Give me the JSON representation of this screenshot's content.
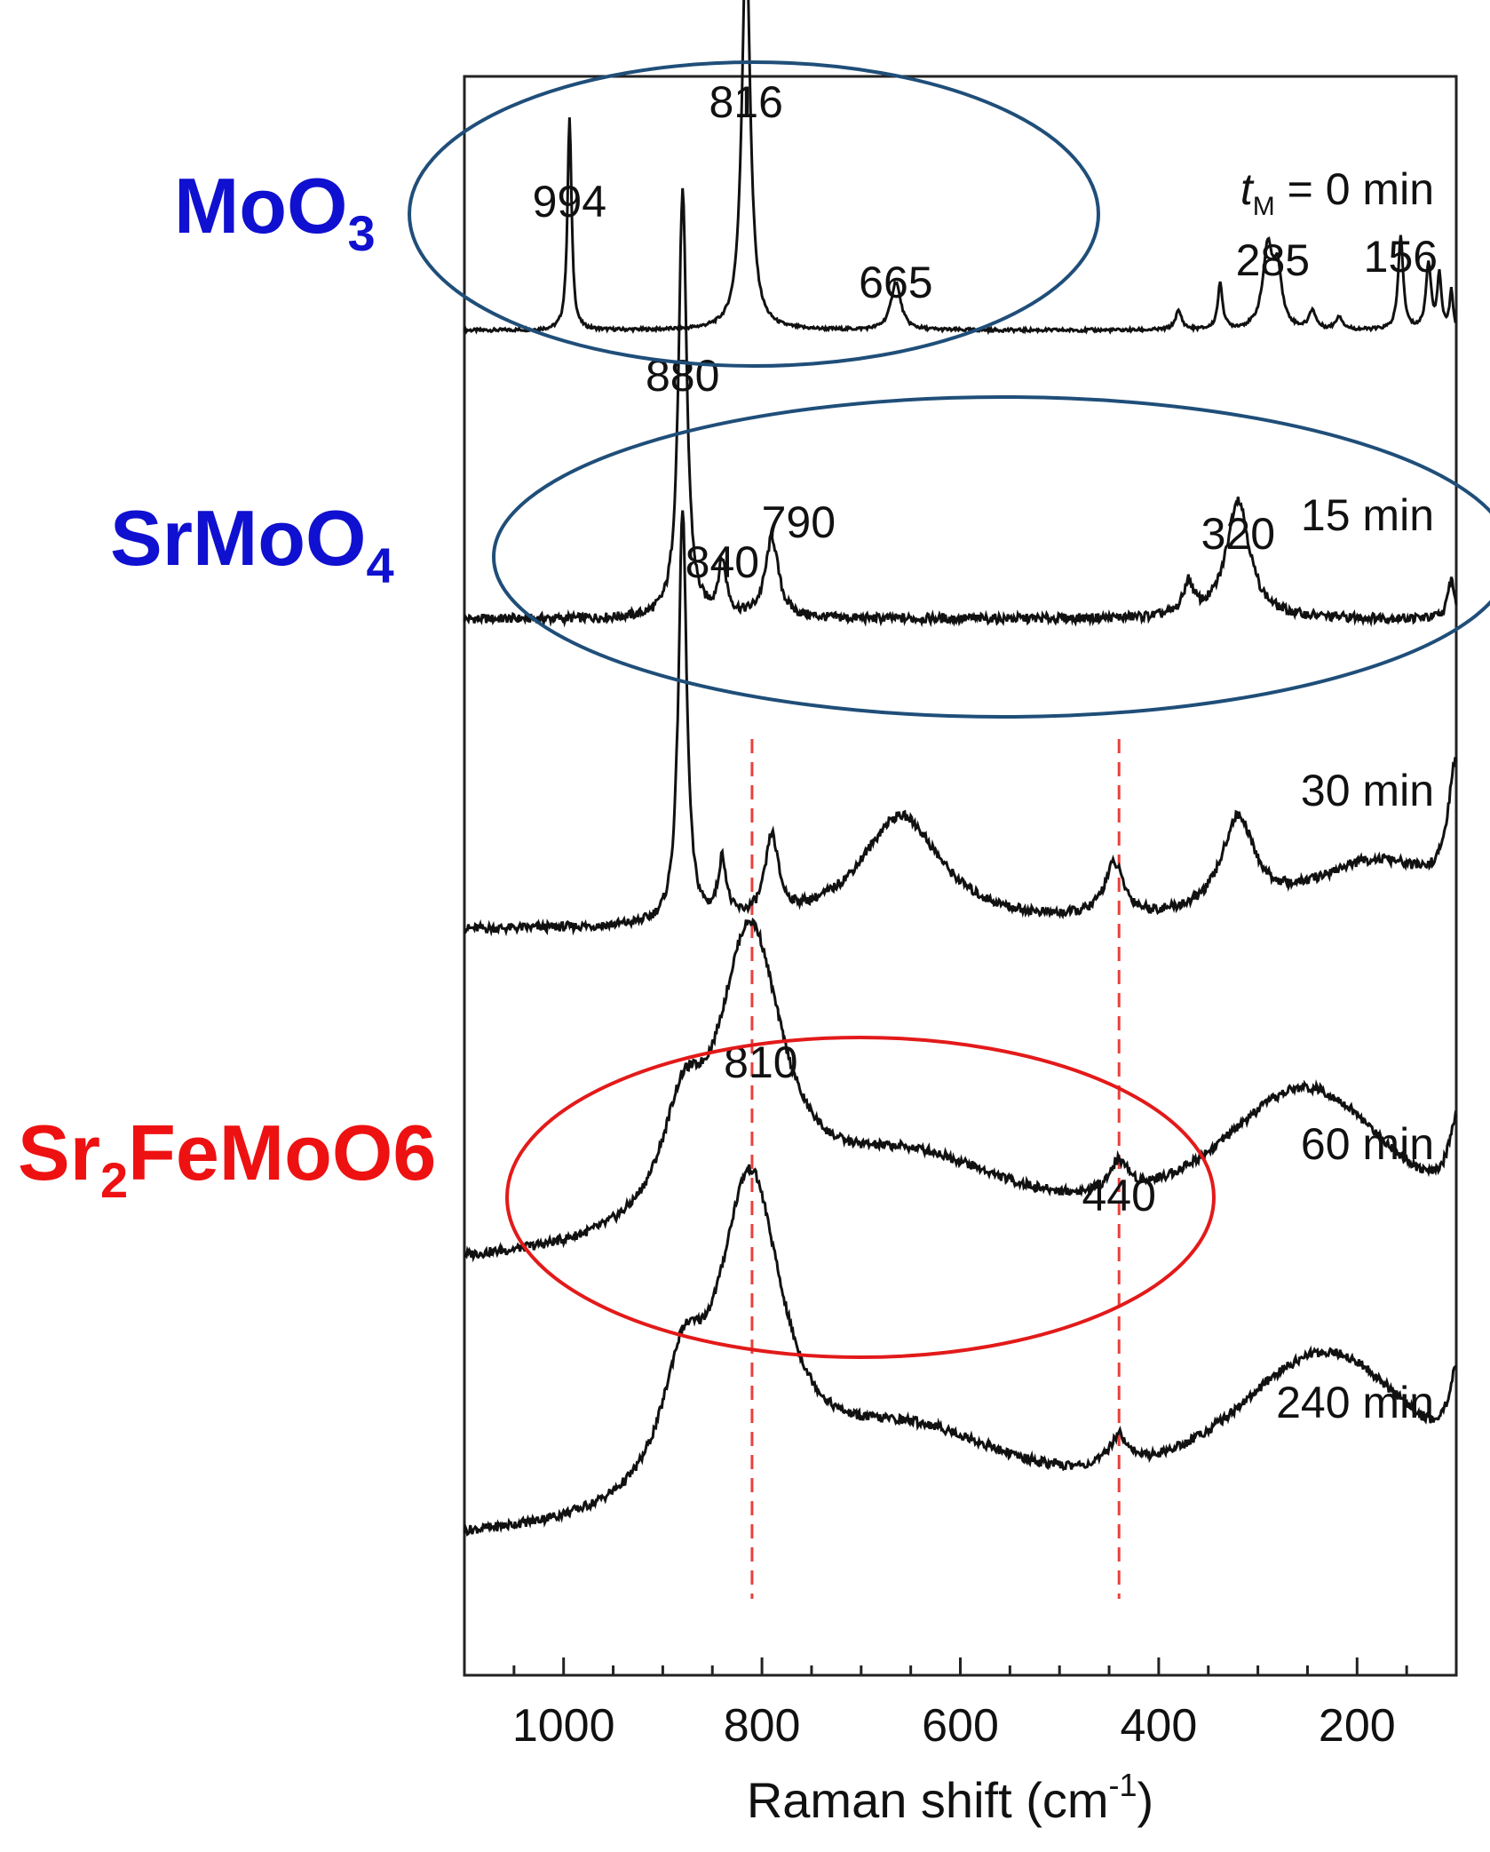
{
  "phases": [
    {
      "name": "MoO",
      "sub": "3",
      "tail": "",
      "color": "#1010d0"
    },
    {
      "name": "SrMoO",
      "sub": "4",
      "tail": "",
      "color": "#1010d0"
    },
    {
      "name": "Sr",
      "sub": "2",
      "tail": "FeMoO6",
      "color": "#ee1111"
    }
  ],
  "chart_data": {
    "type": "line",
    "xlabel": {
      "main": "Raman shift (cm",
      "sup": "-1",
      "end": ")"
    },
    "ylabel": "",
    "xlim": [
      1100,
      100
    ],
    "xticks": [
      1000,
      800,
      600,
      400,
      200
    ],
    "minor_step": 50,
    "reference_lines_x": [
      810,
      440
    ],
    "colors": {
      "spectra": "#111111",
      "ellipse_blue": "#1f4e79",
      "ellipse_red": "#e31a1a",
      "refline": "#e8413c"
    },
    "series": [
      {
        "name": "t_M = 0 min",
        "label_italic": "t",
        "label_sub": "M",
        "label_rest": " = 0 min",
        "baseline": 0.1,
        "peaks": [
          {
            "x": 994,
            "h": 0.8,
            "w": 2.5
          },
          {
            "x": 816,
            "h": 1.5,
            "w": 5
          },
          {
            "x": 665,
            "h": 0.18,
            "w": 6
          },
          {
            "x": 380,
            "h": 0.07,
            "w": 4
          },
          {
            "x": 338,
            "h": 0.17,
            "w": 3
          },
          {
            "x": 290,
            "h": 0.3,
            "w": 6
          },
          {
            "x": 280,
            "h": 0.2,
            "w": 5
          },
          {
            "x": 245,
            "h": 0.07,
            "w": 4
          },
          {
            "x": 218,
            "h": 0.05,
            "w": 4
          },
          {
            "x": 156,
            "h": 0.35,
            "w": 3
          },
          {
            "x": 128,
            "h": 0.25,
            "w": 3
          },
          {
            "x": 117,
            "h": 0.2,
            "w": 2.5
          },
          {
            "x": 105,
            "h": 0.15,
            "w": 2
          }
        ],
        "peak_labels": [
          {
            "x": 994,
            "text": "994"
          },
          {
            "x": 816,
            "text": "816"
          },
          {
            "x": 665,
            "text": "665"
          },
          {
            "x": 285,
            "text": "285"
          },
          {
            "x": 156,
            "text": "156"
          }
        ]
      },
      {
        "name": "15 min",
        "baseline": 0.12,
        "peaks": [
          {
            "x": 880,
            "h": 1.6,
            "w": 5
          },
          {
            "x": 840,
            "h": 0.2,
            "w": 5
          },
          {
            "x": 790,
            "h": 0.3,
            "w": 8
          },
          {
            "x": 370,
            "h": 0.12,
            "w": 6
          },
          {
            "x": 320,
            "h": 0.45,
            "w": 14
          },
          {
            "x": 105,
            "h": 0.15,
            "w": 4
          }
        ],
        "peak_labels": [
          {
            "x": 880,
            "text": "880"
          },
          {
            "x": 840,
            "text": "840"
          },
          {
            "x": 790,
            "text": "790"
          },
          {
            "x": 320,
            "text": "320"
          }
        ]
      },
      {
        "name": "30 min",
        "baseline": 0.08,
        "peaks": [
          {
            "x": 880,
            "h": 1.55,
            "w": 5
          },
          {
            "x": 840,
            "h": 0.22,
            "w": 5
          },
          {
            "x": 790,
            "h": 0.3,
            "w": 8
          },
          {
            "x": 660,
            "h": 0.42,
            "w": 50
          },
          {
            "x": 445,
            "h": 0.2,
            "w": 12
          },
          {
            "x": 320,
            "h": 0.35,
            "w": 20
          },
          {
            "x": 180,
            "h": 0.25,
            "w": 90
          },
          {
            "x": 100,
            "h": 0.5,
            "w": 10
          }
        ],
        "peak_labels": []
      },
      {
        "name": "60 min",
        "baseline": 0.05,
        "peaks": [
          {
            "x": 880,
            "h": 0.35,
            "w": 25
          },
          {
            "x": 812,
            "h": 1.1,
            "w": 40
          },
          {
            "x": 650,
            "h": 0.35,
            "w": 140
          },
          {
            "x": 440,
            "h": 0.12,
            "w": 12
          },
          {
            "x": 250,
            "h": 0.65,
            "w": 120
          },
          {
            "x": 100,
            "h": 0.3,
            "w": 10
          }
        ],
        "peak_labels": [
          {
            "x": 810,
            "text": "810"
          },
          {
            "x": 440,
            "text": "440"
          }
        ]
      },
      {
        "name": "240 min",
        "baseline": 0.05,
        "peaks": [
          {
            "x": 880,
            "h": 0.4,
            "w": 25
          },
          {
            "x": 812,
            "h": 1.2,
            "w": 40
          },
          {
            "x": 650,
            "h": 0.35,
            "w": 140
          },
          {
            "x": 440,
            "h": 0.12,
            "w": 12
          },
          {
            "x": 230,
            "h": 0.7,
            "w": 130
          },
          {
            "x": 100,
            "h": 0.3,
            "w": 10
          }
        ],
        "peak_labels": []
      }
    ]
  }
}
